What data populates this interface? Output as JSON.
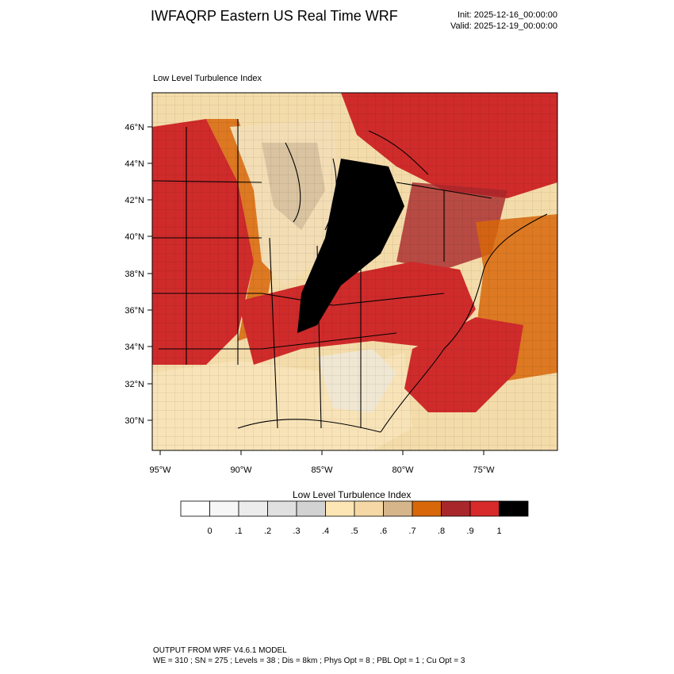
{
  "header": {
    "title": "IWFAQRP Eastern US Real Time WRF",
    "init": "Init: 2025-12-16_00:00:00",
    "valid": "Valid: 2025-12-19_00:00:00"
  },
  "plot": {
    "title": "Low Level Turbulence Index",
    "lat_labels": [
      "46°N",
      "44°N",
      "42°N",
      "40°N",
      "38°N",
      "36°N",
      "34°N",
      "32°N",
      "30°N"
    ],
    "lon_labels": [
      "95°W",
      "90°W",
      "85°W",
      "80°W",
      "75°W"
    ]
  },
  "colorbar": {
    "title": "Low Level Turbulence Index",
    "colors": [
      "#ffffff",
      "#f6f6f6",
      "#ececec",
      "#e0e0e0",
      "#d2d2d2",
      "#fde6b4",
      "#f6d8a6",
      "#d6b58b",
      "#d8670a",
      "#a8272a",
      "#d72a2a",
      "#000000"
    ],
    "labels": [
      "0",
      ".1",
      ".2",
      ".3",
      ".4",
      ".5",
      ".6",
      ".7",
      ".8",
      ".9",
      "1"
    ]
  },
  "footer": {
    "line1": "OUTPUT FROM WRF V4.6.1 MODEL",
    "line2": "WE = 310 ; SN = 275 ; Levels = 38 ; Dis = 8km ; Phys Opt = 8 ; PBL Opt = 1 ; Cu Opt = 3"
  }
}
